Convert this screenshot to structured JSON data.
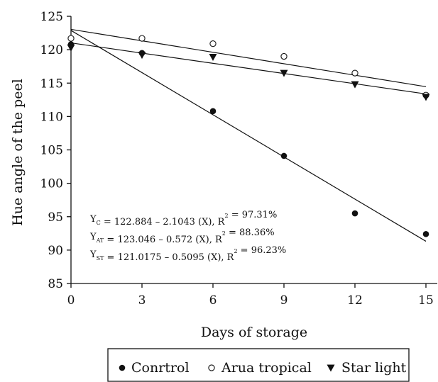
{
  "chart_data": {
    "type": "scatter",
    "xlabel": "Days of storage",
    "ylabel": "Hue angle of the peel",
    "xlim": [
      0,
      15
    ],
    "ylim": [
      85,
      125
    ],
    "xticks": [
      0,
      3,
      6,
      9,
      12,
      15
    ],
    "yticks": [
      85,
      90,
      95,
      100,
      105,
      110,
      115,
      120,
      125
    ],
    "x": [
      0,
      3,
      6,
      9,
      12,
      15
    ],
    "series": [
      {
        "name": "Conrtrol",
        "marker": "filled-circle",
        "values": [
          120.8,
          119.5,
          110.8,
          104.1,
          95.5,
          92.4
        ],
        "trend": {
          "intercept": 122.884,
          "slope": -2.1043
        }
      },
      {
        "name": "Arua tropical",
        "marker": "open-circle",
        "values": [
          121.7,
          121.7,
          120.9,
          119.0,
          116.5,
          113.2
        ],
        "trend": {
          "intercept": 123.046,
          "slope": -0.572
        }
      },
      {
        "name": "Star light",
        "marker": "filled-triangle-down",
        "values": [
          120.3,
          119.2,
          118.9,
          116.5,
          114.8,
          112.9
        ],
        "trend": {
          "intercept": 121.0175,
          "slope": -0.5095
        }
      }
    ],
    "equations": [
      {
        "y": "Y",
        "sub": "C",
        "rhs": " = 122.884 – 2.1043 (X), R",
        "sup": "2",
        "r2": " = 97.31%"
      },
      {
        "y": "Y",
        "sub": "AT",
        "rhs": " = 123.046 – 0.572 (X), R",
        "sup": "2",
        "r2": " = 88.36%"
      },
      {
        "y": "Y",
        "sub": "ST",
        "rhs": " = 121.0175 – 0.5095 (X), R",
        "sup": "2",
        "r2": " = 96.23%"
      }
    ],
    "legend": "bottom-center",
    "grid": false,
    "colors": {
      "ink": "#111111",
      "background": "#ffffff"
    }
  }
}
